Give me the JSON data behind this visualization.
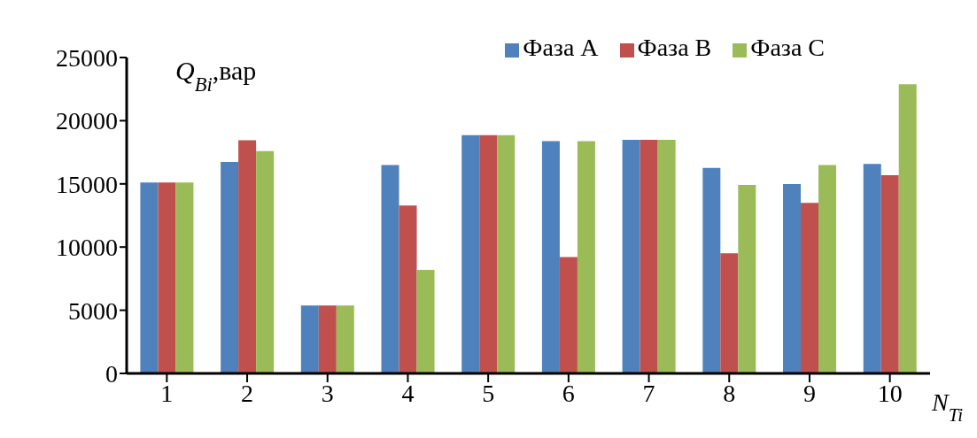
{
  "chart_data": {
    "type": "bar",
    "xlabel": "N$_{Ti}$",
    "ylabel": "Q$_{Bi}$,вар",
    "categories": [
      "1",
      "2",
      "3",
      "4",
      "5",
      "6",
      "7",
      "8",
      "9",
      "10"
    ],
    "series": [
      {
        "name": "Фаза A",
        "color": "#4f81bd",
        "values": [
          15100,
          16730,
          5370,
          16490,
          18860,
          18380,
          18490,
          16270,
          14980,
          16580
        ]
      },
      {
        "name": "Фаза B",
        "color": "#c0504d",
        "values": [
          15100,
          18460,
          5370,
          13290,
          18860,
          9210,
          18490,
          9500,
          13490,
          15680
        ]
      },
      {
        "name": "Фаза C",
        "color": "#9bbb59",
        "values": [
          15100,
          17590,
          5370,
          8200,
          18860,
          18380,
          18490,
          14910,
          16490,
          22890
        ]
      }
    ],
    "ylim": [
      0,
      25000
    ],
    "yticks": [
      0,
      5000,
      10000,
      15000,
      20000,
      25000
    ],
    "grid": false,
    "legend": "top right"
  }
}
